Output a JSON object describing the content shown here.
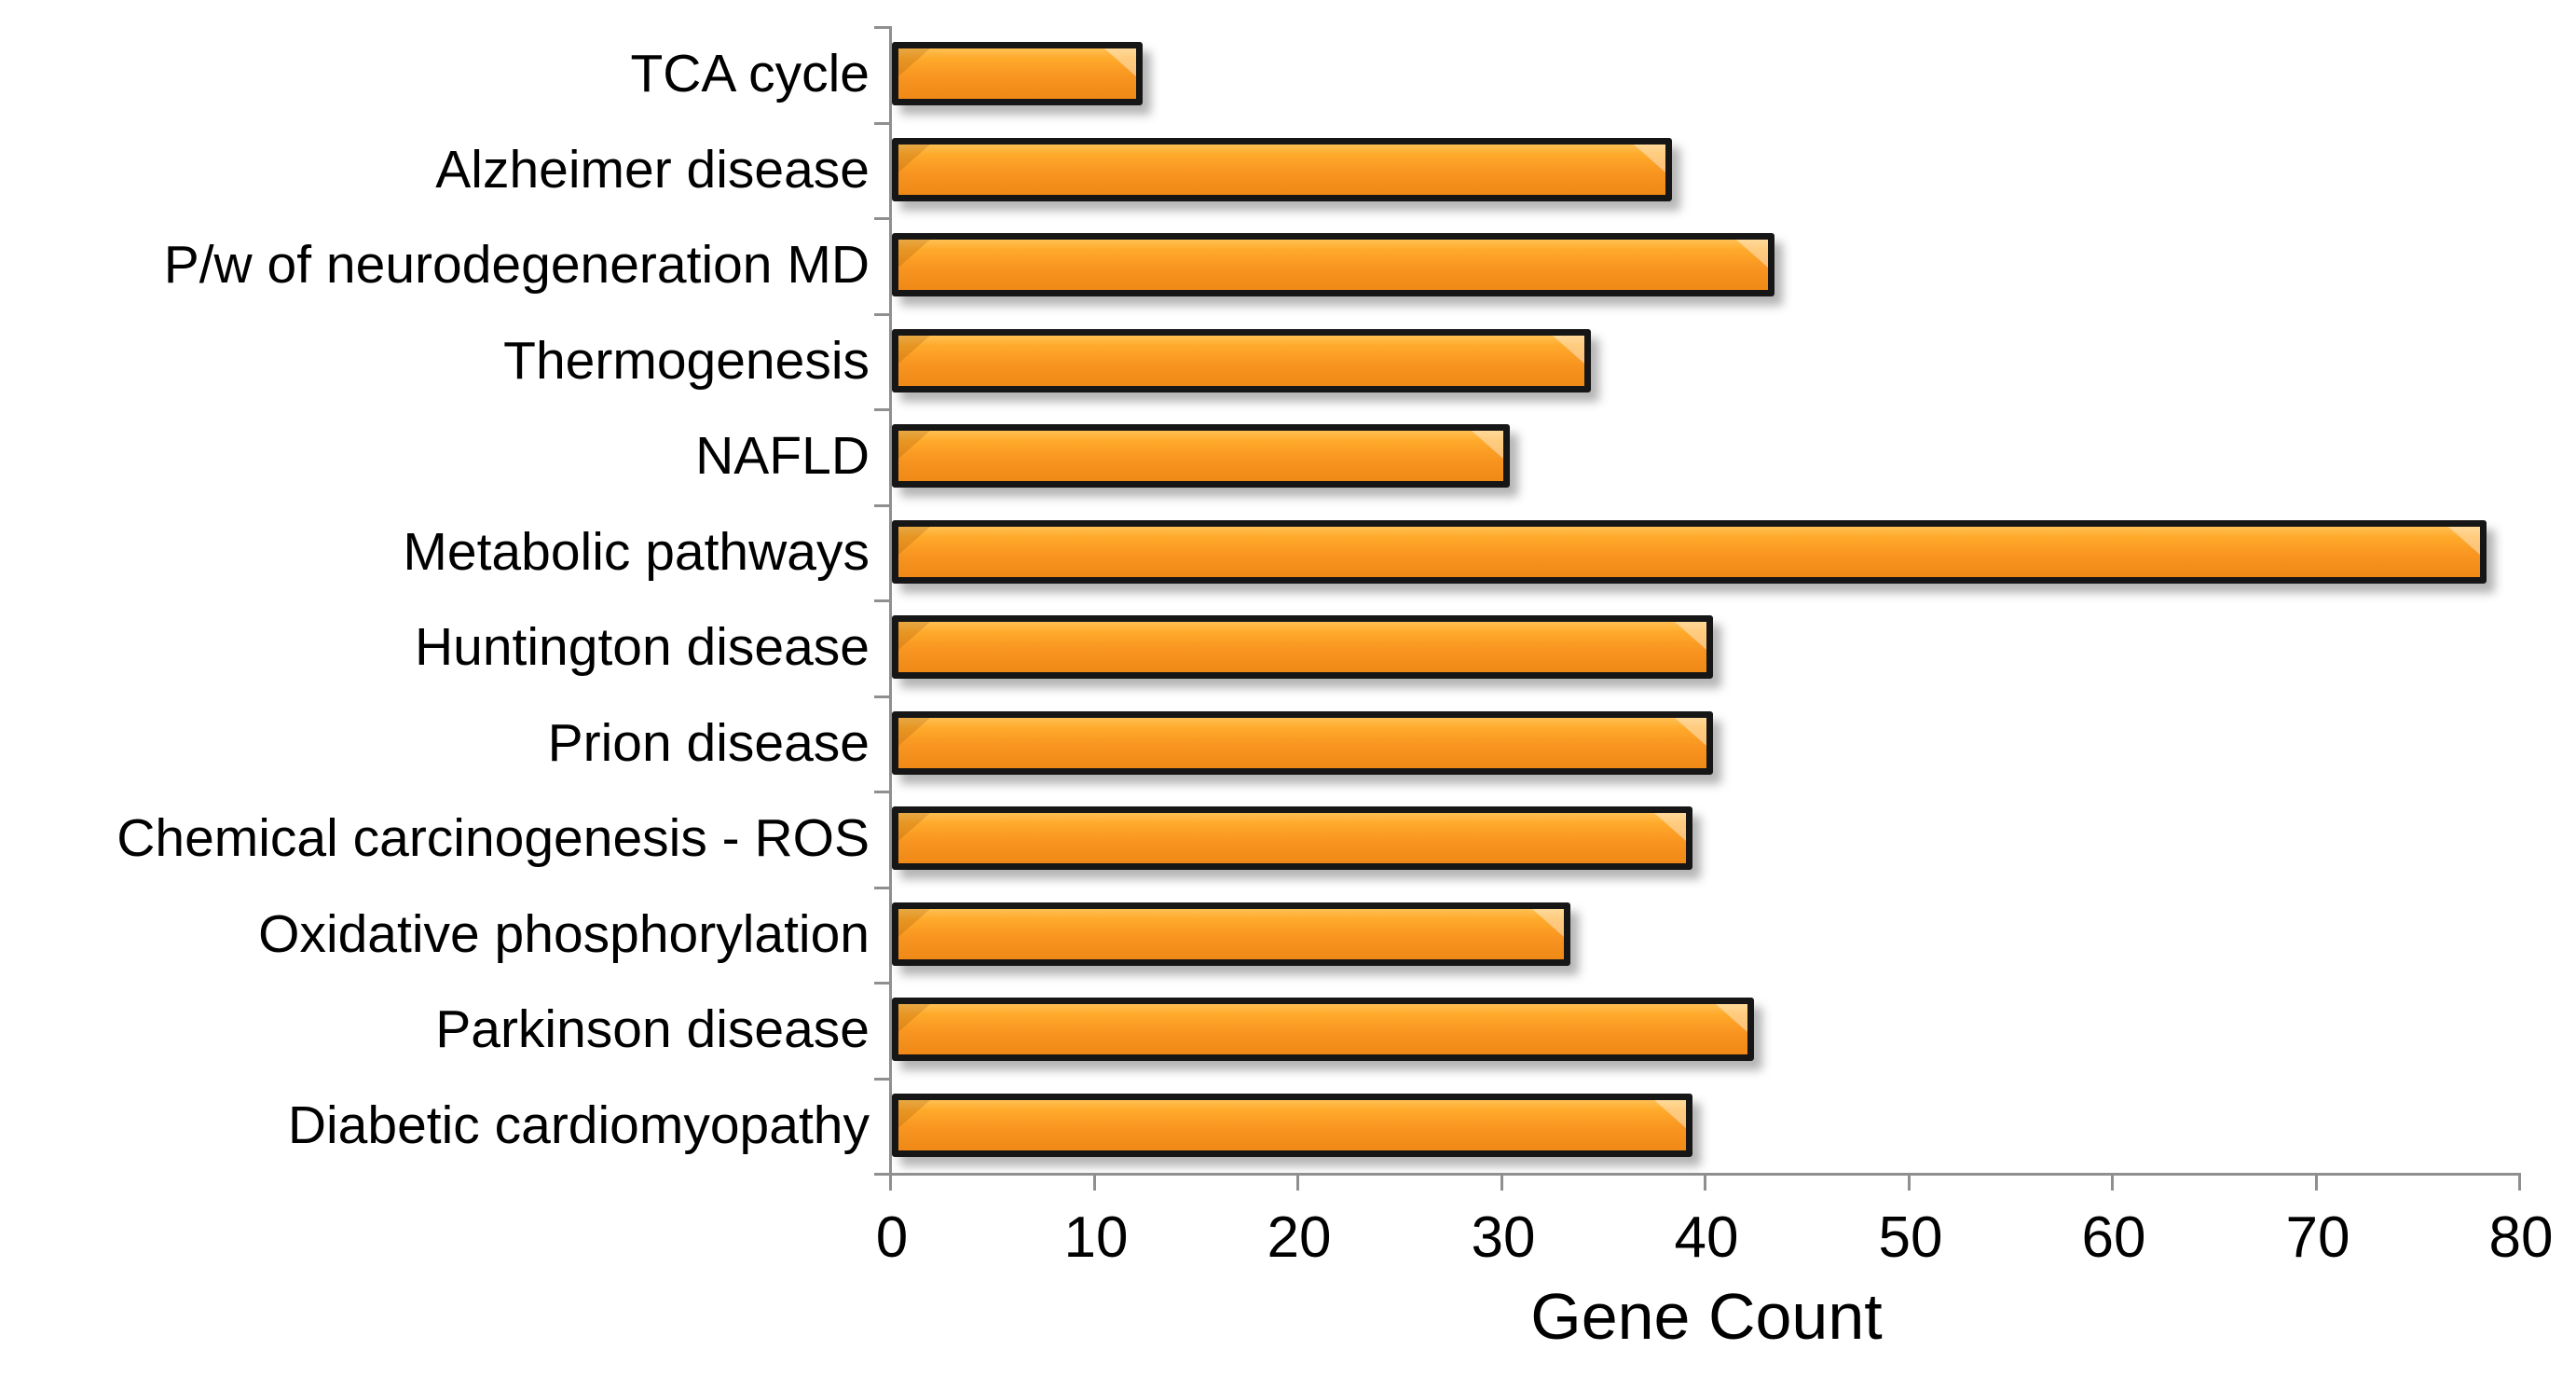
{
  "chart_data": {
    "type": "bar",
    "orientation": "horizontal",
    "title": "",
    "xlabel": "Gene Count",
    "ylabel": "",
    "xlim": [
      0,
      80
    ],
    "x_ticks": [
      0,
      10,
      20,
      30,
      40,
      50,
      60,
      70,
      80
    ],
    "grid": false,
    "legend": "none",
    "categories": [
      "TCA cycle",
      "Alzheimer disease",
      "P/w of neurodegeneration MD",
      "Thermogenesis",
      "NAFLD",
      "Metabolic pathways",
      "Huntington disease",
      "Prion disease",
      "Chemical carcinogenesis - ROS",
      "Oxidative phosphorylation",
      "Parkinson disease",
      "Diabetic cardiomyopathy"
    ],
    "values": [
      12,
      38,
      43,
      34,
      30,
      78,
      40,
      40,
      39,
      33,
      42,
      39
    ]
  },
  "colors": {
    "bar_fill": "#F89420",
    "bar_fill_light": "#FFC053",
    "bar_fill_dark": "#F08916",
    "bar_border": "#161616",
    "axis_line": "#8F8F8F",
    "text": "#000000",
    "background": "#FFFFFF"
  }
}
